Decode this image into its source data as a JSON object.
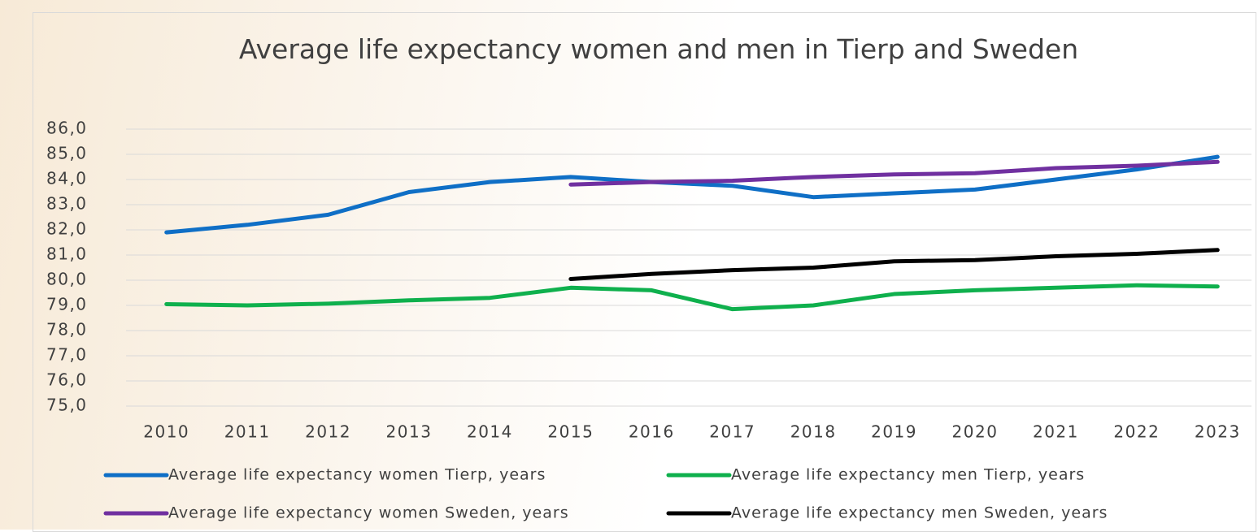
{
  "chart_data": {
    "type": "line",
    "title": "Average life expectancy women and men in Tierp and Sweden",
    "categories": [
      "2010",
      "2011",
      "2012",
      "2013",
      "2014",
      "2015",
      "2016",
      "2017",
      "2018",
      "2019",
      "2020",
      "2021",
      "2022",
      "2023"
    ],
    "series": [
      {
        "name": "Average life expectancy women Tierp, years",
        "color": "#0f6fc6",
        "values": [
          81.9,
          82.2,
          82.6,
          83.5,
          83.9,
          84.1,
          83.9,
          83.75,
          83.3,
          83.45,
          83.6,
          84.0,
          84.4,
          84.9
        ]
      },
      {
        "name": "Average life expectancy men Tierp, years",
        "color": "#0fb04d",
        "values": [
          79.05,
          79.0,
          79.07,
          79.2,
          79.3,
          79.7,
          79.6,
          78.85,
          79.0,
          79.45,
          79.6,
          79.7,
          79.8,
          79.75
        ]
      },
      {
        "name": "Average life expectancy women Sweden, years",
        "color": "#7030a0",
        "values": [
          null,
          null,
          null,
          null,
          null,
          83.8,
          83.9,
          83.95,
          84.1,
          84.2,
          84.25,
          84.45,
          84.55,
          84.7
        ]
      },
      {
        "name": "Average life expectancy men Sweden, years",
        "color": "#000000",
        "values": [
          null,
          null,
          null,
          null,
          null,
          80.05,
          80.25,
          80.4,
          80.5,
          80.75,
          80.8,
          80.95,
          81.05,
          81.2
        ]
      }
    ],
    "ylim": [
      75,
      86
    ],
    "yticks": [
      {
        "value": 75,
        "label": "75,0"
      },
      {
        "value": 76,
        "label": "76,0"
      },
      {
        "value": 77,
        "label": "77,0"
      },
      {
        "value": 78,
        "label": "78,0"
      },
      {
        "value": 79,
        "label": "79,0"
      },
      {
        "value": 80,
        "label": "80,0"
      },
      {
        "value": 81,
        "label": "81,0"
      },
      {
        "value": 82,
        "label": "82,0"
      },
      {
        "value": 83,
        "label": "83,0"
      },
      {
        "value": 84,
        "label": "84,0"
      },
      {
        "value": 85,
        "label": "85,0"
      },
      {
        "value": 86,
        "label": "86,0"
      }
    ],
    "grid": true,
    "legend": "bottom"
  }
}
